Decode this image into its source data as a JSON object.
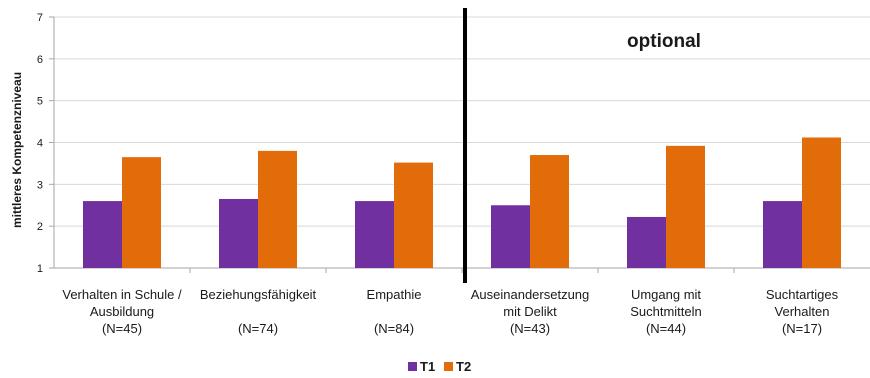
{
  "chart_data": {
    "type": "bar",
    "ylabel": "mittleres Kompetenzniveau",
    "ylim": [
      1,
      7
    ],
    "yticks": [
      "1",
      "2",
      "3",
      "4",
      "5",
      "6",
      "7"
    ],
    "grid": true,
    "annotation": "optional",
    "categories": [
      [
        "Verhalten in Schule /",
        "Ausbildung",
        "(N=45)"
      ],
      [
        "Beziehungsfähigkeit",
        "",
        "(N=74)"
      ],
      [
        "Empathie",
        "",
        "(N=84)"
      ],
      [
        "Auseinandersetzung",
        "mit Delikt",
        "(N=43)"
      ],
      [
        "Umgang mit",
        "Suchtmitteln",
        "(N=44)"
      ],
      [
        "Suchtartiges",
        "Verhalten",
        "(N=17)"
      ]
    ],
    "series": [
      {
        "name": "T1",
        "color": "#7030a0",
        "values": [
          2.6,
          2.65,
          2.6,
          2.5,
          2.22,
          2.6
        ]
      },
      {
        "name": "T2",
        "color": "#e36c0a",
        "values": [
          3.65,
          3.8,
          3.52,
          3.7,
          3.92,
          4.12
        ]
      }
    ],
    "legend_position": "bottom"
  }
}
